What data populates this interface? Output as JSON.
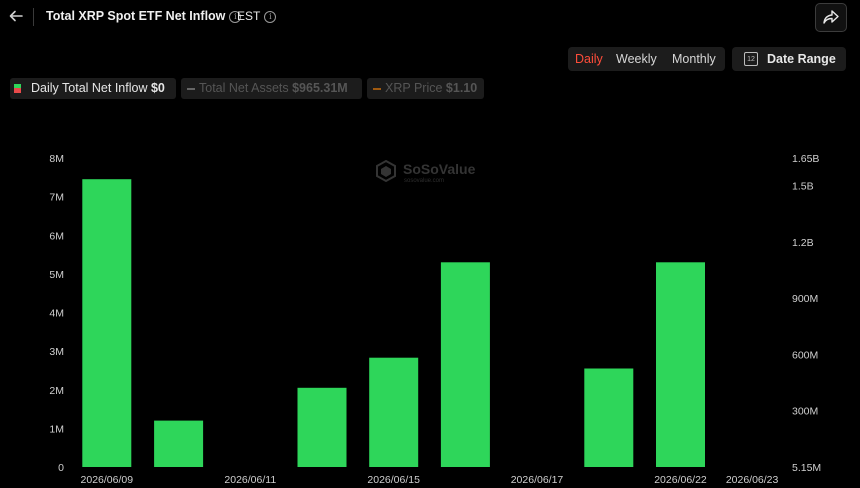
{
  "header": {
    "back_icon": "arrow-left-icon",
    "title": "Total XRP Spot ETF Net Inflow",
    "timezone": "EST",
    "share_icon": "share-icon"
  },
  "controls": {
    "periods": [
      "Daily",
      "Weekly",
      "Monthly"
    ],
    "active_period": "Daily",
    "date_range_label": "Date Range",
    "calendar_icon": "calendar-icon",
    "calendar_day": "12"
  },
  "legend": [
    {
      "label": "Daily Total Net Inflow",
      "value": "$0",
      "active": true,
      "colors": [
        "#2ed65a",
        "#e84a4a"
      ]
    },
    {
      "label": "Total Net Assets",
      "value": "$965.31M",
      "active": false,
      "color": "#666666"
    },
    {
      "label": "XRP Price",
      "value": "$1.10",
      "active": false,
      "color": "#a05a10"
    }
  ],
  "watermark": {
    "name": "SoSoValue",
    "sub": "sosovalue.com"
  },
  "colors": {
    "accent": "#ff4d3a",
    "bar": "#2ed65a",
    "background": "#000000"
  },
  "chart_data": {
    "type": "bar",
    "categories": [
      "2026/06/09",
      "2026/06/10",
      "2026/06/11",
      "2026/06/12",
      "2026/06/15",
      "2026/06/16",
      "2026/06/17",
      "2026/06/18",
      "2026/06/22",
      "2026/06/23"
    ],
    "series": [
      {
        "name": "Daily Total Net Inflow",
        "values": [
          7450000,
          1200000,
          0,
          2050000,
          2830000,
          5300000,
          0,
          2550000,
          5300000,
          0
        ]
      }
    ],
    "x_tick_labels": [
      "2026/06/09",
      "2026/06/11",
      "2026/06/15",
      "2026/06/17",
      "2026/06/22",
      "2026/06/23"
    ],
    "ylim": [
      0,
      8000000
    ],
    "y_ticks": [
      "0",
      "1M",
      "2M",
      "3M",
      "4M",
      "5M",
      "6M",
      "7M",
      "8M"
    ],
    "y2_ticks": [
      "5.15M",
      "300M",
      "600M",
      "900M",
      "1.2B",
      "1.5B",
      "1.65B"
    ],
    "grid": false,
    "legend_position": "top-left"
  }
}
